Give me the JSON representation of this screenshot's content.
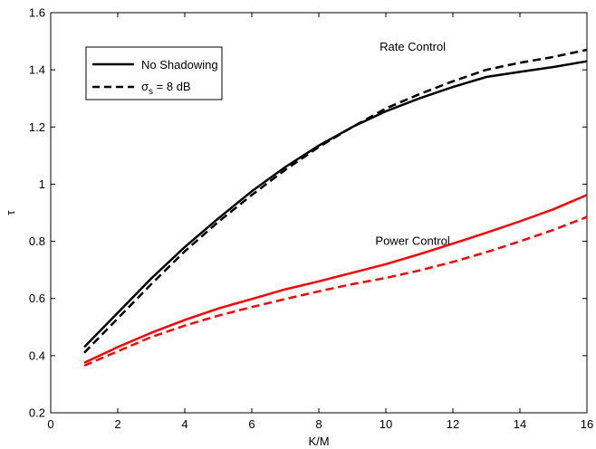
{
  "chart_data": {
    "type": "line",
    "title": "",
    "xlabel": "K/M",
    "ylabel": "τ",
    "xlim": [
      0,
      16
    ],
    "ylim": [
      0.2,
      1.6
    ],
    "xticks": [
      "0",
      "2",
      "4",
      "6",
      "8",
      "10",
      "12",
      "14",
      "16"
    ],
    "yticks": [
      "0.2",
      "0.4",
      "0.6",
      "0.8",
      "1",
      "1.2",
      "1.4",
      "1.6"
    ],
    "grid": false,
    "legend_position": "top-left",
    "legend": [
      {
        "label": "No Shadowing",
        "style": "solid"
      },
      {
        "label_prefix": "σ",
        "label_subscript": "s",
        "label_suffix": " = 8 dB",
        "style": "dashed"
      }
    ],
    "annotations": [
      {
        "text": "Rate Control",
        "x": 10.8,
        "y": 1.48
      },
      {
        "text": "Power Control",
        "x": 10.8,
        "y": 0.8
      }
    ],
    "x": [
      1,
      2,
      3,
      4,
      5,
      6,
      7,
      8,
      9,
      10,
      11,
      12,
      13,
      14,
      15,
      16
    ],
    "series": [
      {
        "name": "Rate Control – No Shadowing",
        "color": "#000000",
        "dash": "solid",
        "values": [
          0.43,
          0.55,
          0.67,
          0.78,
          0.88,
          0.975,
          1.06,
          1.135,
          1.2,
          1.255,
          1.3,
          1.34,
          1.375,
          1.393,
          1.41,
          1.43
        ]
      },
      {
        "name": "Rate Control – σs = 8 dB",
        "color": "#000000",
        "dash": "dashed",
        "values": [
          0.41,
          0.53,
          0.65,
          0.765,
          0.868,
          0.962,
          1.05,
          1.13,
          1.2,
          1.265,
          1.315,
          1.36,
          1.4,
          1.425,
          1.445,
          1.47
        ]
      },
      {
        "name": "Power Control – No Shadowing",
        "color": "#ff0000",
        "dash": "solid",
        "values": [
          0.375,
          0.43,
          0.48,
          0.525,
          0.565,
          0.598,
          0.632,
          0.66,
          0.69,
          0.72,
          0.755,
          0.792,
          0.83,
          0.87,
          0.912,
          0.962
        ]
      },
      {
        "name": "Power Control – σs = 8 dB",
        "color": "#ff0000",
        "dash": "dashed",
        "values": [
          0.365,
          0.415,
          0.465,
          0.505,
          0.54,
          0.57,
          0.598,
          0.625,
          0.65,
          0.672,
          0.698,
          0.728,
          0.762,
          0.8,
          0.84,
          0.885
        ]
      }
    ]
  }
}
